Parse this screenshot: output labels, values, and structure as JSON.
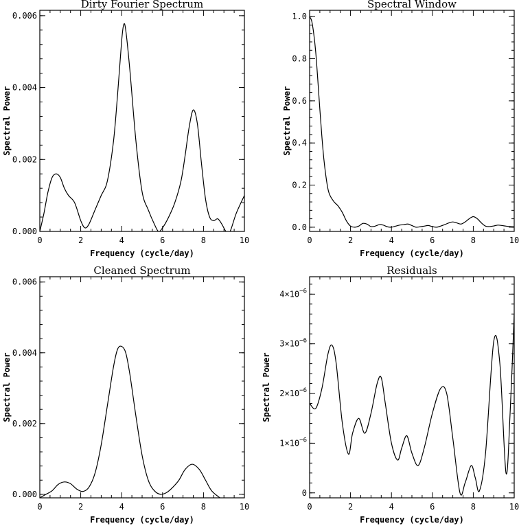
{
  "chart_data": [
    {
      "type": "line",
      "title": "Dirty Fourier Spectrum",
      "xlabel": "Frequency (cycle/day)",
      "ylabel": "Spectral Power",
      "xlim": [
        0,
        10
      ],
      "ylim": [
        0,
        0.00615
      ],
      "xticks": [
        0,
        2,
        4,
        6,
        8,
        10
      ],
      "xtick_labels": [
        "0",
        "2",
        "4",
        "6",
        "8",
        "10"
      ],
      "yticks": [
        0,
        0.002,
        0.004,
        0.006
      ],
      "ytick_labels": [
        "0.000",
        "0.002",
        "0.004",
        "0.006"
      ],
      "x": [
        0,
        0.2,
        0.4,
        0.6,
        0.8,
        1.0,
        1.2,
        1.4,
        1.7,
        2.0,
        2.2,
        2.4,
        2.7,
        3.0,
        3.3,
        3.6,
        3.8,
        4.0,
        4.1,
        4.2,
        4.4,
        4.7,
        5.0,
        5.3,
        5.6,
        5.8,
        6.0,
        6.3,
        6.6,
        6.9,
        7.1,
        7.3,
        7.5,
        7.7,
        7.9,
        8.1,
        8.3,
        8.5,
        8.7,
        8.9,
        9.1,
        9.3,
        9.6,
        10.0
      ],
      "y": [
        0.0,
        0.0005,
        0.0011,
        0.0015,
        0.0016,
        0.0015,
        0.0012,
        0.001,
        0.0008,
        0.0003,
        0.0001,
        0.0002,
        0.0006,
        0.001,
        0.0014,
        0.0025,
        0.0038,
        0.0053,
        0.00575,
        0.0056,
        0.0045,
        0.0025,
        0.0011,
        0.0006,
        0.0002,
        0.0,
        0.0001,
        0.0004,
        0.0008,
        0.0014,
        0.0021,
        0.0029,
        0.00338,
        0.003,
        0.0019,
        0.0009,
        0.0004,
        0.0003,
        0.00035,
        0.0002,
        0.0,
        0.0,
        0.0005,
        0.001
      ]
    },
    {
      "type": "line",
      "title": "Spectral Window",
      "xlabel": "Frequency (cycle/day)",
      "ylabel": "Spectral Power",
      "xlim": [
        0,
        10
      ],
      "ylim": [
        -0.02,
        1.03
      ],
      "xticks": [
        0,
        2,
        4,
        6,
        8,
        10
      ],
      "xtick_labels": [
        "0",
        "2",
        "4",
        "6",
        "8",
        "10"
      ],
      "yticks": [
        0,
        0.2,
        0.4,
        0.6,
        0.8,
        1.0
      ],
      "ytick_labels": [
        "0.0",
        "0.2",
        "0.4",
        "0.6",
        "0.8",
        "1.0"
      ],
      "x": [
        0,
        0.1,
        0.2,
        0.3,
        0.4,
        0.5,
        0.6,
        0.7,
        0.8,
        0.9,
        1.0,
        1.2,
        1.4,
        1.6,
        1.8,
        2.0,
        2.2,
        2.4,
        2.6,
        2.8,
        3.0,
        3.2,
        3.4,
        3.6,
        3.8,
        4.0,
        4.2,
        4.4,
        4.6,
        4.8,
        5.0,
        5.2,
        5.4,
        5.6,
        5.8,
        6.0,
        6.2,
        6.4,
        6.6,
        6.8,
        7.0,
        7.2,
        7.4,
        7.6,
        7.8,
        8.0,
        8.2,
        8.4,
        8.6,
        8.8,
        9.0,
        9.2,
        9.4,
        9.6,
        9.8,
        10.0
      ],
      "y": [
        1.0,
        0.98,
        0.92,
        0.83,
        0.7,
        0.56,
        0.43,
        0.32,
        0.24,
        0.18,
        0.15,
        0.12,
        0.1,
        0.07,
        0.03,
        0.005,
        0.0,
        0.005,
        0.018,
        0.015,
        0.003,
        0.005,
        0.012,
        0.01,
        0.002,
        0.0,
        0.005,
        0.01,
        0.012,
        0.015,
        0.008,
        0.0,
        0.002,
        0.005,
        0.008,
        0.003,
        0.0,
        0.005,
        0.012,
        0.02,
        0.025,
        0.02,
        0.015,
        0.025,
        0.04,
        0.05,
        0.04,
        0.02,
        0.005,
        0.003,
        0.006,
        0.01,
        0.008,
        0.005,
        0.003,
        0.002
      ]
    },
    {
      "type": "line",
      "title": "Cleaned Spectrum",
      "xlabel": "Frequency (cycle/day)",
      "ylabel": "Spectral Power",
      "xlim": [
        0,
        10
      ],
      "ylim": [
        -0.0001,
        0.00615
      ],
      "xticks": [
        0,
        2,
        4,
        6,
        8,
        10
      ],
      "xtick_labels": [
        "0",
        "2",
        "4",
        "6",
        "8",
        "10"
      ],
      "yticks": [
        0,
        0.002,
        0.004,
        0.006
      ],
      "ytick_labels": [
        "0.000",
        "0.002",
        "0.004",
        "0.006"
      ],
      "x": [
        0,
        0.3,
        0.6,
        0.9,
        1.2,
        1.5,
        1.8,
        2.1,
        2.4,
        2.7,
        3.0,
        3.3,
        3.6,
        3.8,
        4.0,
        4.2,
        4.4,
        4.7,
        5.0,
        5.3,
        5.6,
        5.9,
        6.2,
        6.5,
        6.8,
        7.1,
        7.45,
        7.8,
        8.1,
        8.4,
        8.8
      ],
      "y": [
        -0.0001,
        0.0,
        0.0001,
        0.00028,
        0.00035,
        0.0003,
        0.00015,
        8e-05,
        0.0002,
        0.0006,
        0.0014,
        0.0025,
        0.0036,
        0.0041,
        0.00418,
        0.004,
        0.0034,
        0.0022,
        0.0011,
        0.0004,
        0.0001,
        0.0,
        5e-05,
        0.0002,
        0.0004,
        0.0007,
        0.00085,
        0.0007,
        0.0004,
        0.0001,
        -0.0001
      ]
    },
    {
      "type": "line",
      "title": "Residuals",
      "xlabel": "Frequency (cycle/day)",
      "ylabel": "Spectral Power",
      "xlim": [
        0,
        10
      ],
      "ylim": [
        -1e-07,
        4.35e-06
      ],
      "xticks": [
        0,
        2,
        4,
        6,
        8,
        10
      ],
      "xtick_labels": [
        "0",
        "2",
        "4",
        "6",
        "8",
        "10"
      ],
      "yticks": [
        0,
        1e-06,
        2e-06,
        3e-06,
        4e-06
      ],
      "ytick_labels": [
        {
          "text": "0",
          "sup": ""
        },
        {
          "text": "1×10",
          "sup": "−6"
        },
        {
          "text": "2×10",
          "sup": "−6"
        },
        {
          "text": "3×10",
          "sup": "−6"
        },
        {
          "text": "4×10",
          "sup": "−6"
        }
      ],
      "x": [
        0,
        0.3,
        0.6,
        0.9,
        1.1,
        1.3,
        1.6,
        1.9,
        2.1,
        2.4,
        2.7,
        3.0,
        3.3,
        3.5,
        3.7,
        4.0,
        4.3,
        4.5,
        4.75,
        5.0,
        5.3,
        5.6,
        6.0,
        6.4,
        6.7,
        7.0,
        7.35,
        7.6,
        7.9,
        8.1,
        8.3,
        8.6,
        9.0,
        9.3,
        9.6,
        9.8,
        10.0
      ],
      "y": [
        1.8e-06,
        1.7e-06,
        2.1e-06,
        2.8e-06,
        2.97e-06,
        2.6e-06,
        1.4e-06,
        7.8e-07,
        1.2e-06,
        1.5e-06,
        1.2e-06,
        1.6e-06,
        2.2e-06,
        2.32e-06,
        1.8e-06,
        1e-06,
        6.6e-07,
        9e-07,
        1.15e-06,
        8e-07,
        5.5e-07,
        9e-07,
        1.6e-06,
        2.1e-06,
        2e-06,
        1.1e-06,
        0.0,
        2e-07,
        5.5e-07,
        3e-07,
        4e-08,
        8e-07,
        3.05e-06,
        2.6e-06,
        4e-07,
        1.6e-06,
        3.6e-06
      ]
    }
  ]
}
